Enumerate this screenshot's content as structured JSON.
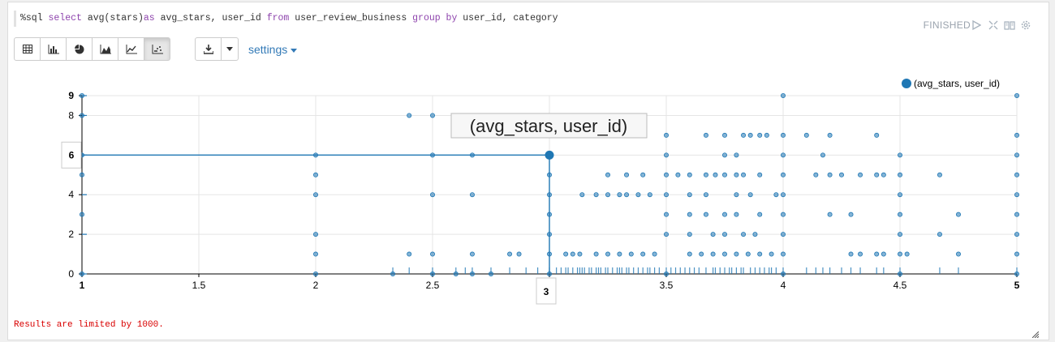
{
  "editor": {
    "segments": [
      {
        "t": "%sql ",
        "k": false
      },
      {
        "t": "select ",
        "k": true
      },
      {
        "t": "avg(stars)",
        "k": false
      },
      {
        "t": "as ",
        "k": true
      },
      {
        "t": "avg_stars, user_id ",
        "k": false
      },
      {
        "t": "from ",
        "k": true
      },
      {
        "t": "user_review_business ",
        "k": false
      },
      {
        "t": "group by ",
        "k": true
      },
      {
        "t": "user_id, category",
        "k": false
      }
    ]
  },
  "status": "FINISHED",
  "toolbar": {
    "chart_buttons": [
      {
        "name": "table-view-button",
        "icon": "table-icon"
      },
      {
        "name": "bar-chart-button",
        "icon": "bar-chart-icon"
      },
      {
        "name": "pie-chart-button",
        "icon": "pie-chart-icon"
      },
      {
        "name": "area-chart-button",
        "icon": "area-chart-icon"
      },
      {
        "name": "line-chart-button",
        "icon": "line-chart-icon"
      },
      {
        "name": "scatter-chart-button",
        "icon": "scatter-chart-icon",
        "active": true
      }
    ],
    "download_icon": "download-icon",
    "settings_label": "settings"
  },
  "footer_text": "Results are limited by 1000.",
  "colors": {
    "series": "#1f77b4",
    "keyword": "#8e44ad",
    "error": "#d90000",
    "link": "#337ab7"
  },
  "chart_data": {
    "type": "scatter",
    "legend": "(avg_stars, user_id)",
    "tooltip": "(avg_stars, user_id)",
    "highlight": {
      "x": 3,
      "y": 6
    },
    "highlight_labels": {
      "x": "3",
      "y": "6"
    },
    "xlim": [
      1,
      5
    ],
    "ylim": [
      0,
      9
    ],
    "x_ticks": [
      {
        "v": 1,
        "label": "1",
        "bold": true
      },
      {
        "v": 1.5,
        "label": "1.5"
      },
      {
        "v": 2,
        "label": "2"
      },
      {
        "v": 2.5,
        "label": "2.5"
      },
      {
        "v": 3,
        "label": "3"
      },
      {
        "v": 3.5,
        "label": "3.5"
      },
      {
        "v": 4,
        "label": "4"
      },
      {
        "v": 4.5,
        "label": "4.5"
      },
      {
        "v": 5,
        "label": "5",
        "bold": true
      }
    ],
    "y_ticks": [
      {
        "v": 0,
        "label": "0"
      },
      {
        "v": 2,
        "label": "2"
      },
      {
        "v": 4,
        "label": "4"
      },
      {
        "v": 6,
        "label": "6"
      },
      {
        "v": 8,
        "label": "8"
      },
      {
        "v": 9,
        "label": "9",
        "bold": true
      }
    ],
    "points": [
      [
        1,
        9
      ],
      [
        1,
        8
      ],
      [
        1,
        6
      ],
      [
        1,
        5
      ],
      [
        1,
        3
      ],
      [
        1,
        0
      ],
      [
        2,
        6
      ],
      [
        2,
        5
      ],
      [
        2,
        4
      ],
      [
        2,
        2
      ],
      [
        2,
        1
      ],
      [
        2,
        0
      ],
      [
        2.4,
        8
      ],
      [
        2.5,
        8
      ],
      [
        2.5,
        6
      ],
      [
        2.5,
        4
      ],
      [
        2.5,
        1
      ],
      [
        2.5,
        0
      ],
      [
        2.4,
        1
      ],
      [
        2.67,
        6
      ],
      [
        2.67,
        4
      ],
      [
        2.67,
        1
      ],
      [
        2.67,
        0
      ],
      [
        2.83,
        1
      ],
      [
        2.87,
        1
      ],
      [
        2.33,
        0
      ],
      [
        2.75,
        0
      ],
      [
        2.6,
        0
      ],
      [
        3,
        6
      ],
      [
        3,
        5
      ],
      [
        3,
        4
      ],
      [
        3,
        3
      ],
      [
        3,
        2
      ],
      [
        3,
        1
      ],
      [
        3,
        0
      ],
      [
        3.07,
        1
      ],
      [
        3.1,
        1
      ],
      [
        3.13,
        1
      ],
      [
        3.2,
        1
      ],
      [
        3.25,
        1
      ],
      [
        3.3,
        1
      ],
      [
        3.35,
        1
      ],
      [
        3.4,
        1
      ],
      [
        3.45,
        1
      ],
      [
        3.6,
        1
      ],
      [
        3.65,
        1
      ],
      [
        3.7,
        1
      ],
      [
        3.75,
        1
      ],
      [
        3.8,
        1
      ],
      [
        3.85,
        1
      ],
      [
        3.9,
        1
      ],
      [
        3.14,
        4
      ],
      [
        3.2,
        4
      ],
      [
        3.25,
        4
      ],
      [
        3.3,
        4
      ],
      [
        3.33,
        4
      ],
      [
        3.38,
        4
      ],
      [
        3.43,
        4
      ],
      [
        3.5,
        4
      ],
      [
        3.6,
        4
      ],
      [
        3.67,
        4
      ],
      [
        3.8,
        4
      ],
      [
        3.86,
        4
      ],
      [
        3.25,
        5
      ],
      [
        3.33,
        5
      ],
      [
        3.4,
        5
      ],
      [
        3.5,
        5
      ],
      [
        3.55,
        5
      ],
      [
        3.6,
        5
      ],
      [
        3.67,
        5
      ],
      [
        3.71,
        5
      ],
      [
        3.75,
        5
      ],
      [
        3.8,
        5
      ],
      [
        3.83,
        5
      ],
      [
        3.9,
        5
      ],
      [
        3.5,
        7
      ],
      [
        3.5,
        6
      ],
      [
        3.5,
        3
      ],
      [
        3.5,
        2
      ],
      [
        3.5,
        0
      ],
      [
        3.6,
        2
      ],
      [
        3.7,
        2
      ],
      [
        3.75,
        2
      ],
      [
        3.83,
        2
      ],
      [
        3.88,
        2
      ],
      [
        3.6,
        3
      ],
      [
        3.67,
        3
      ],
      [
        3.75,
        3
      ],
      [
        3.8,
        3
      ],
      [
        3.9,
        3
      ],
      [
        3.67,
        7
      ],
      [
        3.75,
        7
      ],
      [
        3.83,
        7
      ],
      [
        3.86,
        7
      ],
      [
        3.9,
        7
      ],
      [
        3.93,
        7
      ],
      [
        3.75,
        6
      ],
      [
        3.8,
        6
      ],
      [
        4,
        9
      ],
      [
        4,
        7
      ],
      [
        4,
        6
      ],
      [
        4,
        5
      ],
      [
        4,
        4
      ],
      [
        4,
        3
      ],
      [
        4,
        2
      ],
      [
        4,
        1
      ],
      [
        4,
        0
      ],
      [
        3.95,
        1
      ],
      [
        3.97,
        4
      ],
      [
        4.1,
        7
      ],
      [
        4.2,
        7
      ],
      [
        4.4,
        7
      ],
      [
        4.17,
        6
      ],
      [
        4.14,
        5
      ],
      [
        4.2,
        5
      ],
      [
        4.25,
        5
      ],
      [
        4.33,
        5
      ],
      [
        4.4,
        5
      ],
      [
        4.43,
        5
      ],
      [
        4.5,
        6
      ],
      [
        4.5,
        5
      ],
      [
        4.5,
        4
      ],
      [
        4.5,
        3
      ],
      [
        4.5,
        2
      ],
      [
        4.5,
        1
      ],
      [
        4.5,
        0
      ],
      [
        4.2,
        3
      ],
      [
        4.29,
        3
      ],
      [
        4.29,
        1
      ],
      [
        4.33,
        1
      ],
      [
        4.4,
        1
      ],
      [
        4.43,
        1
      ],
      [
        4.53,
        1
      ],
      [
        4.67,
        5
      ],
      [
        4.67,
        2
      ],
      [
        4.75,
        3
      ],
      [
        4.75,
        1
      ],
      [
        5,
        9
      ],
      [
        5,
        7
      ],
      [
        5,
        6
      ],
      [
        5,
        5
      ],
      [
        5,
        4
      ],
      [
        5,
        3
      ],
      [
        5,
        2
      ],
      [
        5,
        1
      ],
      [
        5,
        0
      ]
    ],
    "rug_x": [
      2.33,
      2.4,
      2.5,
      2.6,
      2.64,
      2.67,
      2.75,
      2.83,
      2.9,
      2.95,
      3.0,
      3.03,
      3.05,
      3.07,
      3.08,
      3.1,
      3.12,
      3.13,
      3.14,
      3.15,
      3.17,
      3.18,
      3.2,
      3.21,
      3.22,
      3.24,
      3.25,
      3.27,
      3.29,
      3.3,
      3.31,
      3.33,
      3.34,
      3.36,
      3.38,
      3.4,
      3.42,
      3.43,
      3.45,
      3.47,
      3.5,
      3.52,
      3.54,
      3.56,
      3.58,
      3.6,
      3.62,
      3.64,
      3.67,
      3.7,
      3.71,
      3.73,
      3.75,
      3.77,
      3.78,
      3.8,
      3.82,
      3.83,
      3.86,
      3.88,
      3.9,
      3.92,
      3.94,
      3.95,
      3.97,
      4.0,
      4.1,
      4.14,
      4.17,
      4.2,
      4.25,
      4.29,
      4.33,
      4.4,
      4.43,
      4.5,
      4.67,
      4.75,
      5.0
    ]
  }
}
